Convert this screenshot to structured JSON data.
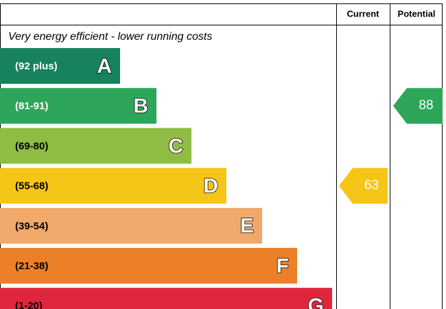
{
  "header": {
    "current": "Current",
    "potential": "Potential"
  },
  "subtitle": "Very energy efficient - lower running costs",
  "bands": [
    {
      "range": "(92 plus)",
      "letter": "A",
      "color": "#17825c"
    },
    {
      "range": "(81-91)",
      "letter": "B",
      "color": "#2ea65a"
    },
    {
      "range": "(69-80)",
      "letter": "C",
      "color": "#8fbc43"
    },
    {
      "range": "(55-68)",
      "letter": "D",
      "color": "#f5c518"
    },
    {
      "range": "(39-54)",
      "letter": "E",
      "color": "#f0a96b"
    },
    {
      "range": "(21-38)",
      "letter": "F",
      "color": "#ec8028"
    },
    {
      "range": "(1-20)",
      "letter": "G",
      "color": "#e0263d"
    }
  ],
  "current": 63,
  "potential": 88
}
